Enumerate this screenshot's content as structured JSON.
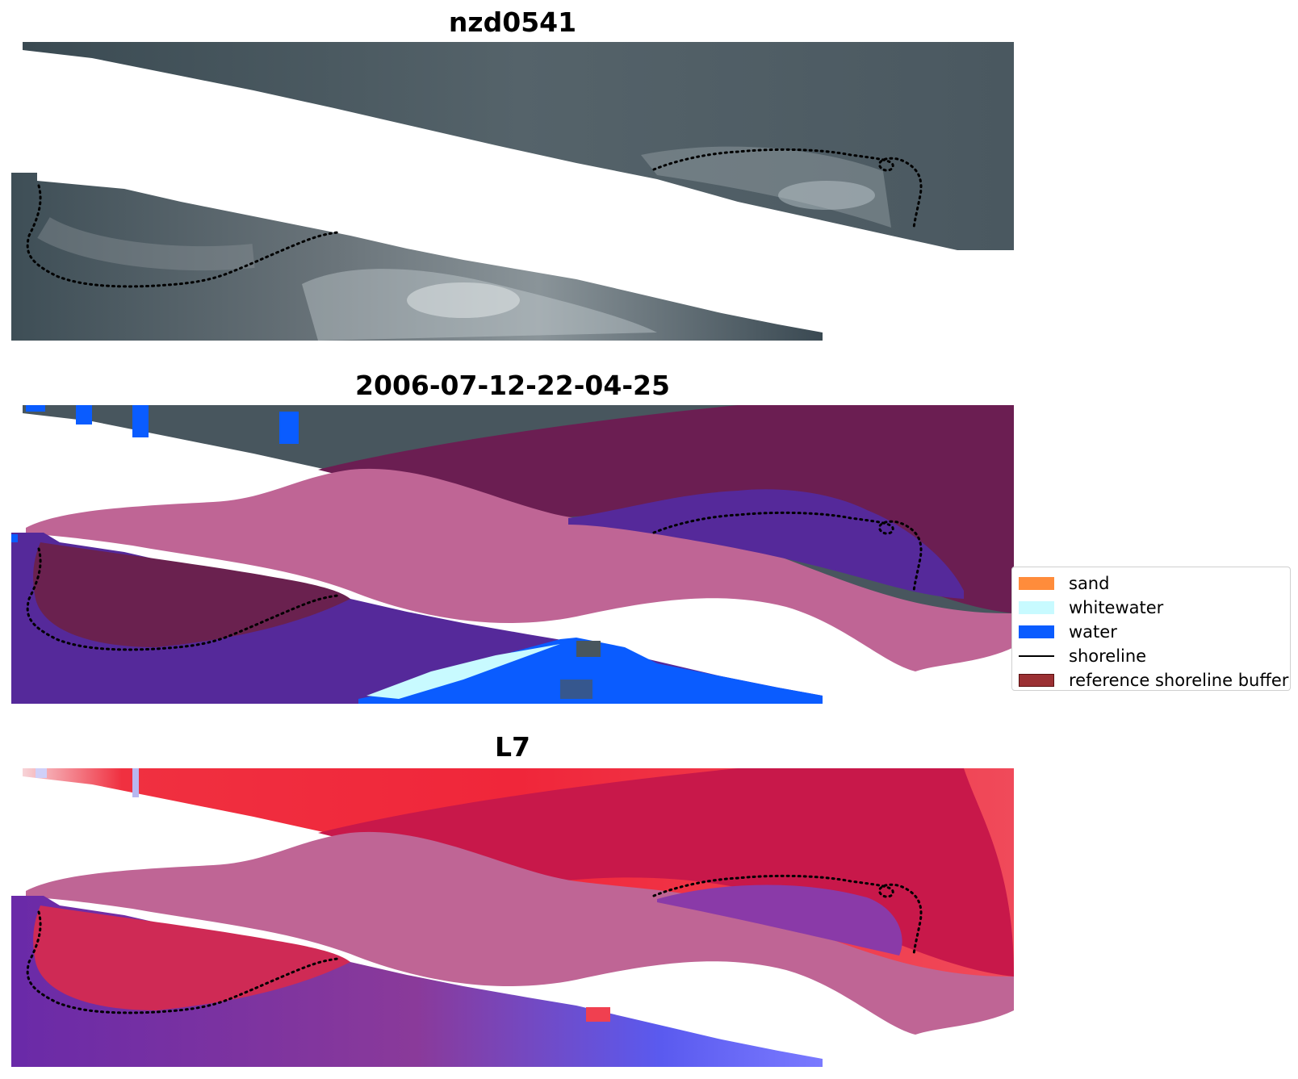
{
  "panels": [
    {
      "title": "nzd0541"
    },
    {
      "title": "2006-07-12-22-04-25"
    },
    {
      "title": "L7"
    }
  ],
  "legend": {
    "items": [
      {
        "label": "sand",
        "kind": "patch",
        "color": "#ff8c3b"
      },
      {
        "label": "whitewater",
        "kind": "patch",
        "color": "#c8faff"
      },
      {
        "label": "water",
        "kind": "patch",
        "color": "#0a5cff"
      },
      {
        "label": "shoreline",
        "kind": "line",
        "color": "#000000"
      },
      {
        "label": "reference shoreline buffer",
        "kind": "patch",
        "color": "#9b3033"
      }
    ]
  },
  "colors": {
    "imagery_dark": "#3d4b55",
    "imagery_mid": "#56646c",
    "buffer_pink": "#bf6595",
    "buffer_dark": "#6b1e52",
    "water_purple": "#55299a",
    "index_red": "#f0263a",
    "index_crimson": "#c8184a",
    "index_purple": "#7a3aa8",
    "index_blue": "#3a3adf"
  }
}
